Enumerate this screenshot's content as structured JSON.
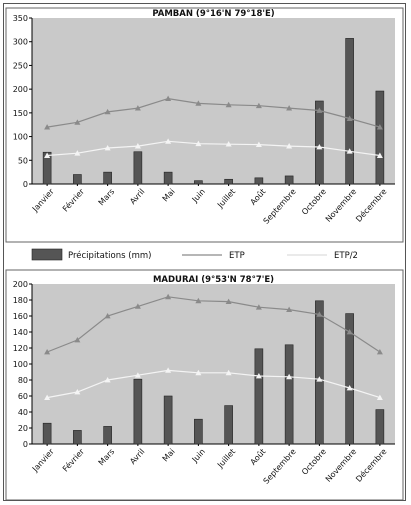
{
  "legend": {
    "items": [
      {
        "label": "Précipitations (mm)",
        "kind": "bar"
      },
      {
        "label": "ETP",
        "kind": "line"
      },
      {
        "label": "ETP/2",
        "kind": "line"
      }
    ]
  },
  "chart_data": [
    {
      "type": "bar",
      "title": "PAMBAN (9°16'N  79°18'E)",
      "categories": [
        "Janvier",
        "Février",
        "Mars",
        "Avril",
        "Mai",
        "Juin",
        "Juillet",
        "Août",
        "Septembre",
        "Octobre",
        "Novembre",
        "Décembre"
      ],
      "ylim": [
        0,
        350
      ],
      "yticks": [
        0,
        50,
        100,
        150,
        200,
        250,
        300,
        350
      ],
      "grid": false,
      "series": [
        {
          "name": "Précipitations (mm)",
          "type": "bar",
          "values": [
            67,
            20,
            25,
            68,
            25,
            7,
            10,
            13,
            17,
            175,
            307,
            196
          ]
        },
        {
          "name": "ETP",
          "type": "line",
          "values": [
            120,
            130,
            152,
            160,
            180,
            170,
            167,
            165,
            160,
            155,
            138,
            120
          ]
        },
        {
          "name": "ETP/2",
          "type": "line",
          "values": [
            60,
            65,
            76,
            80,
            90,
            85,
            84,
            83,
            80,
            78,
            69,
            60
          ]
        }
      ]
    },
    {
      "type": "bar",
      "title": "MADURAI (9°53'N  78°7'E)",
      "categories": [
        "Janvier",
        "Février",
        "Mars",
        "Avril",
        "Mai",
        "Juin",
        "Juillet",
        "Août",
        "Septembre",
        "Octobre",
        "Novembre",
        "Décembre"
      ],
      "ylim": [
        0,
        200
      ],
      "yticks": [
        0,
        20,
        40,
        60,
        80,
        100,
        120,
        140,
        160,
        180,
        200
      ],
      "grid": false,
      "series": [
        {
          "name": "Précipitations (mm)",
          "type": "bar",
          "values": [
            26,
            17,
            22,
            81,
            60,
            31,
            48,
            119,
            124,
            179,
            163,
            43
          ]
        },
        {
          "name": "ETP",
          "type": "line",
          "values": [
            115,
            130,
            160,
            172,
            184,
            179,
            178,
            171,
            168,
            162,
            140,
            115
          ]
        },
        {
          "name": "ETP/2",
          "type": "line",
          "values": [
            58,
            65,
            80,
            86,
            92,
            89,
            89,
            85,
            84,
            81,
            70,
            58
          ]
        }
      ]
    }
  ],
  "colors": {
    "plot_bg": "#c9c9c9",
    "bar": "#555555",
    "etp_line": "#8a8a8a",
    "etp2_line": "#f4f4f4"
  }
}
